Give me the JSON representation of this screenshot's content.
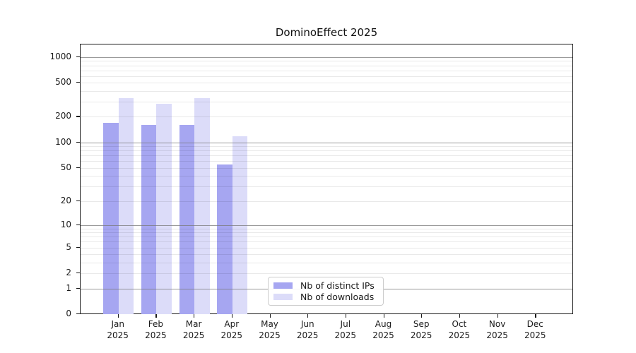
{
  "chart_data": {
    "type": "bar",
    "title": "DominoEffect 2025",
    "categories": [
      "Jan",
      "Feb",
      "Mar",
      "Apr",
      "May",
      "Jun",
      "Jul",
      "Aug",
      "Sep",
      "Oct",
      "Nov",
      "Dec"
    ],
    "category_year": "2025",
    "series": [
      {
        "name": "Nb of distinct IPs",
        "color": "#a6a6f1",
        "values": [
          170,
          160,
          160,
          55,
          null,
          null,
          null,
          null,
          null,
          null,
          null,
          null
        ]
      },
      {
        "name": "Nb of downloads",
        "color": "#dcdcf9",
        "values": [
          330,
          285,
          330,
          118,
          null,
          null,
          null,
          null,
          null,
          null,
          null,
          null
        ]
      }
    ],
    "xlabel": "",
    "ylabel": "",
    "yscale": "log1p",
    "yticks": [
      1000,
      500,
      200,
      100,
      50,
      20,
      10,
      5,
      2,
      1,
      0
    ],
    "ylim": [
      0,
      1400
    ],
    "grid": "horizontal major and minor gridlines, drawn over bars",
    "legend_position": "lower center",
    "colors": {
      "major_grid": "#8c8c8c",
      "minor_grid": "#e8e8e8",
      "spine": "#1a1a1a",
      "background": "#ffffff"
    }
  }
}
